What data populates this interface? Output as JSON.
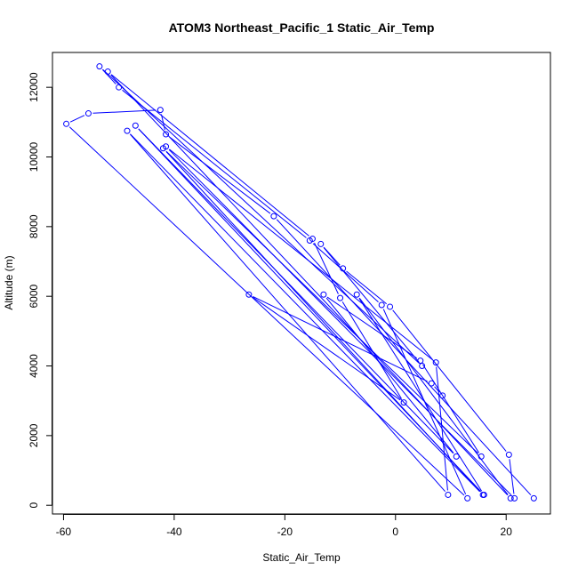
{
  "chart_data": {
    "type": "line",
    "title": "ATOM3 Northeast_Pacific_1 Static_Air_Temp",
    "xlabel": "Static_Air_Temp",
    "ylabel": "Altitude (m)",
    "xlim": [
      -62,
      28
    ],
    "ylim": [
      -250,
      13000
    ],
    "xticks": [
      -60,
      -40,
      -20,
      0,
      20
    ],
    "yticks": [
      0,
      2000,
      4000,
      6000,
      8000,
      10000,
      12000
    ],
    "xtick_labels": [
      "-60",
      "-40",
      "-20",
      "0",
      "20"
    ],
    "ytick_labels": [
      "0",
      "2000",
      "4000",
      "6000",
      "8000",
      "10000",
      "12000"
    ],
    "series_color": "#0000ff",
    "plot_style": "both",
    "grid": false,
    "points": [
      {
        "x": 25.0,
        "y": 200
      },
      {
        "x": -22.0,
        "y": 8300
      },
      {
        "x": -41.5,
        "y": 10650
      },
      {
        "x": -42.5,
        "y": 11350
      },
      {
        "x": -55.5,
        "y": 11250
      },
      {
        "x": -59.5,
        "y": 10950
      },
      {
        "x": 13.0,
        "y": 200
      },
      {
        "x": -2.5,
        "y": 5750
      },
      {
        "x": -15.5,
        "y": 7600
      },
      {
        "x": -50.0,
        "y": 12000
      },
      {
        "x": -53.5,
        "y": 12600
      },
      {
        "x": 4.8,
        "y": 4000
      },
      {
        "x": -13.5,
        "y": 7500
      },
      {
        "x": -9.5,
        "y": 6800
      },
      {
        "x": -1.0,
        "y": 5700
      },
      {
        "x": 20.5,
        "y": 1450
      },
      {
        "x": 21.5,
        "y": 200
      },
      {
        "x": -41.5,
        "y": 10300
      },
      {
        "x": 7.3,
        "y": 4100
      },
      {
        "x": 9.5,
        "y": 300
      },
      {
        "x": -48.5,
        "y": 10750
      },
      {
        "x": 15.8,
        "y": 300
      },
      {
        "x": -42.0,
        "y": 10250
      },
      {
        "x": 15.5,
        "y": 1400
      },
      {
        "x": 4.5,
        "y": 4150
      },
      {
        "x": -13.0,
        "y": 6050
      },
      {
        "x": 11.0,
        "y": 1400
      },
      {
        "x": -47.0,
        "y": 10900
      },
      {
        "x": 16.0,
        "y": 300
      },
      {
        "x": -7.0,
        "y": 6050
      },
      {
        "x": 20.8,
        "y": 200
      },
      {
        "x": -52.0,
        "y": 12450
      },
      {
        "x": -15.0,
        "y": 7650
      },
      {
        "x": -10.0,
        "y": 5950
      },
      {
        "x": 1.5,
        "y": 2950
      },
      {
        "x": -26.5,
        "y": 6050
      },
      {
        "x": 6.5,
        "y": 3500
      },
      {
        "x": 8.5,
        "y": 3150
      }
    ]
  }
}
